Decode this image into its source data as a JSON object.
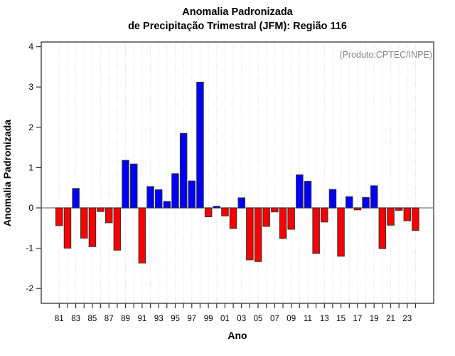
{
  "figure": {
    "title_line1": "Anomalia Padronizada",
    "title_line2": "de Precipitação Trimestral (JFM): Região 116",
    "annotation": "(Produto:CPTEC/INPE)",
    "y_axis_label": "Anomalia Padronizada",
    "x_axis_label": "Ano"
  },
  "chart_data": {
    "type": "bar",
    "title": "Anomalia Padronizada de Precipitação Trimestral (JFM): Região 116",
    "xlabel": "Ano",
    "ylabel": "Anomalia Padronizada",
    "annotation": "(Produto:CPTEC/INPE)",
    "ylim": [
      -2.43,
      4.11
    ],
    "y_ticks": [
      4,
      3,
      2,
      1,
      0,
      -1,
      -2
    ],
    "x_tick_labels": [
      "81",
      "83",
      "85",
      "87",
      "89",
      "91",
      "93",
      "95",
      "97",
      "99",
      "01",
      "03",
      "05",
      "07",
      "09",
      "11",
      "13",
      "15",
      "17",
      "19",
      "21",
      "23"
    ],
    "categories": [
      "1981",
      "1982",
      "1983",
      "1984",
      "1985",
      "1986",
      "1987",
      "1988",
      "1989",
      "1990",
      "1991",
      "1992",
      "1993",
      "1994",
      "1995",
      "1996",
      "1997",
      "1998",
      "1999",
      "2000",
      "2001",
      "2002",
      "2003",
      "2004",
      "2005",
      "2006",
      "2007",
      "2008",
      "2009",
      "2010",
      "2011",
      "2012",
      "2013",
      "2014",
      "2015",
      "2016",
      "2017",
      "2018",
      "2019",
      "2020",
      "2021",
      "2022",
      "2023",
      "2024"
    ],
    "values": [
      -0.44,
      -1.0,
      0.48,
      -0.75,
      -0.96,
      -0.09,
      -0.37,
      -1.05,
      1.18,
      1.09,
      -1.37,
      0.53,
      0.45,
      0.16,
      0.85,
      1.85,
      0.67,
      3.12,
      -0.22,
      0.04,
      -0.2,
      -0.51,
      0.25,
      -1.29,
      -1.33,
      -0.46,
      -0.1,
      -0.76,
      -0.53,
      0.82,
      0.66,
      -1.13,
      -0.35,
      0.46,
      -1.2,
      0.28,
      -0.05,
      0.26,
      0.55,
      -1.01,
      -0.43,
      -0.06,
      -0.32,
      -0.56
    ],
    "grid": "vertical dotted line per year",
    "legend": "none",
    "colors": {
      "positive_bar": "#0000FA",
      "negative_bar": "#FA0000",
      "bar_border": "#333333",
      "grid_line": "#DCDCDC",
      "axis_box": "#333333",
      "zero_line": "#909090",
      "tick_label": "#000000",
      "annotation_text": "#828282"
    }
  }
}
